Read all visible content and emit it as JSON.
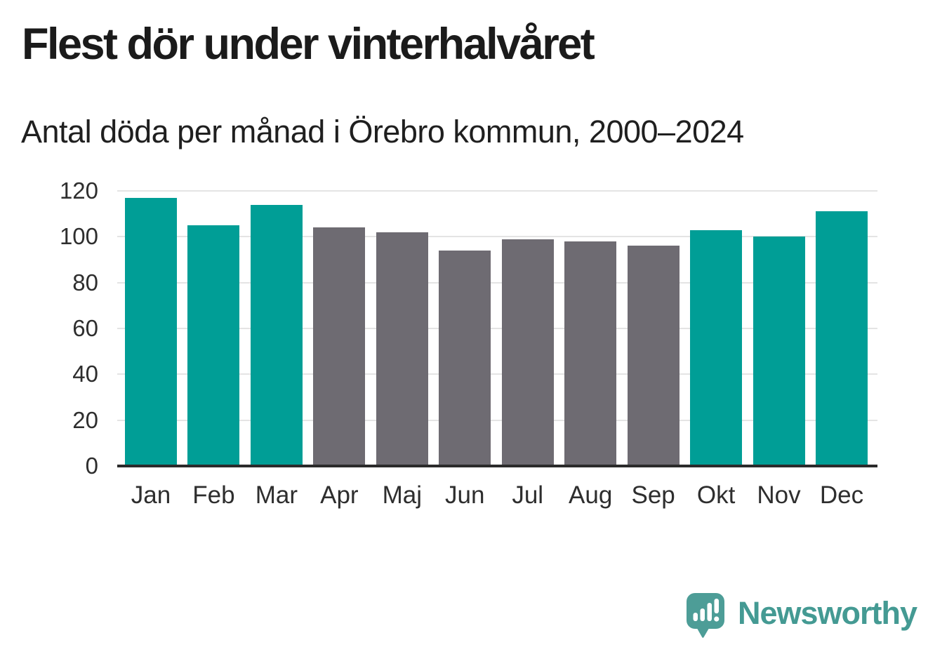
{
  "header": {
    "title": "Flest dör under vinterhalvåret",
    "subtitle": "Antal döda per månad i Örebro kommun, 2000–2024"
  },
  "chart_data": {
    "type": "bar",
    "title": "Flest dör under vinterhalvåret",
    "subtitle": "Antal döda per månad i Örebro kommun, 2000–2024",
    "categories": [
      "Jan",
      "Feb",
      "Mar",
      "Apr",
      "Maj",
      "Jun",
      "Jul",
      "Aug",
      "Sep",
      "Okt",
      "Nov",
      "Dec"
    ],
    "values": [
      117,
      105,
      114,
      104,
      102,
      94,
      99,
      98,
      96,
      103,
      100,
      111
    ],
    "bar_color_keys": [
      "teal",
      "teal",
      "teal",
      "gray",
      "gray",
      "gray",
      "gray",
      "gray",
      "gray",
      "teal",
      "teal",
      "teal"
    ],
    "colors": {
      "teal": "#009e96",
      "gray": "#6e6b72",
      "gridline": "#e4e4e4",
      "axis": "#2b2b2b",
      "tick_text": "#2e2e2e"
    },
    "xlabel": "",
    "ylabel": "",
    "ylim": [
      0,
      120
    ],
    "yticks": [
      0,
      20,
      40,
      60,
      80,
      100,
      120
    ],
    "grid": "horizontal",
    "legend": "none"
  },
  "branding": {
    "logo_text": "Newsworthy",
    "logo_icon": "speech-bubble-with-bar-chart-and-exclamation",
    "logo_text_color": "#449a93",
    "logo_bubble_color": "#4d9d97"
  }
}
